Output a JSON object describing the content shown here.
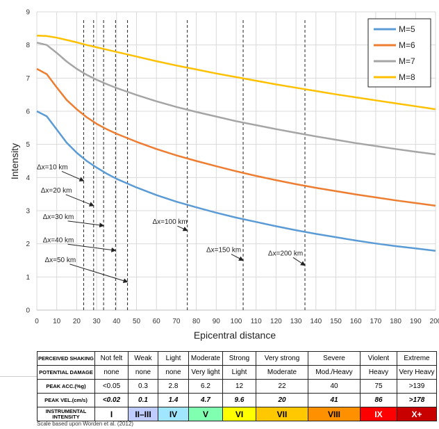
{
  "chart_data": {
    "type": "line",
    "xlabel": "Epicentral distance",
    "ylabel": "Intensity",
    "xlim": [
      0,
      200
    ],
    "ylim": [
      0,
      9
    ],
    "x_ticks": [
      "0",
      "10",
      "20",
      "30",
      "40",
      "50",
      "60",
      "70",
      "80",
      "90",
      "100",
      "110",
      "120",
      "130",
      "140",
      "150",
      "160",
      "170",
      "180",
      "190",
      "200"
    ],
    "y_ticks": [
      "0",
      "1",
      "2",
      "3",
      "4",
      "5",
      "6",
      "7",
      "8",
      "9"
    ],
    "grid": true,
    "legend_position": "top-right",
    "x": [
      0,
      5,
      10,
      15,
      20,
      25,
      30,
      35,
      40,
      50,
      60,
      70,
      80,
      90,
      100,
      110,
      120,
      130,
      140,
      150,
      160,
      170,
      180,
      190,
      200
    ],
    "series": [
      {
        "name": "M=5",
        "color": "#5b9bd5",
        "values": [
          6.0,
          5.85,
          5.45,
          5.05,
          4.75,
          4.5,
          4.3,
          4.12,
          3.96,
          3.7,
          3.47,
          3.27,
          3.1,
          2.94,
          2.79,
          2.66,
          2.53,
          2.41,
          2.3,
          2.2,
          2.1,
          2.01,
          1.93,
          1.86,
          1.79
        ]
      },
      {
        "name": "M=6",
        "color": "#ed7d31",
        "values": [
          7.28,
          7.12,
          6.72,
          6.34,
          6.06,
          5.82,
          5.62,
          5.46,
          5.32,
          5.08,
          4.86,
          4.67,
          4.5,
          4.34,
          4.19,
          4.05,
          3.92,
          3.8,
          3.69,
          3.59,
          3.49,
          3.4,
          3.31,
          3.23,
          3.15
        ]
      },
      {
        "name": "M=7",
        "color": "#a5a5a5",
        "values": [
          8.07,
          8.0,
          7.76,
          7.5,
          7.28,
          7.1,
          6.95,
          6.82,
          6.7,
          6.49,
          6.3,
          6.13,
          5.98,
          5.84,
          5.7,
          5.58,
          5.46,
          5.35,
          5.24,
          5.14,
          5.04,
          4.95,
          4.86,
          4.78,
          4.7
        ]
      },
      {
        "name": "M=8",
        "color": "#ffc000",
        "values": [
          8.28,
          8.27,
          8.22,
          8.15,
          8.08,
          8.0,
          7.93,
          7.86,
          7.79,
          7.65,
          7.51,
          7.38,
          7.26,
          7.14,
          7.03,
          6.92,
          6.81,
          6.71,
          6.61,
          6.51,
          6.42,
          6.33,
          6.24,
          6.15,
          6.06
        ]
      }
    ],
    "vertical_lines": [
      23.5,
      28.5,
      33.5,
      39.5,
      45.5,
      75.5,
      103.5,
      134.5
    ],
    "annotations": [
      {
        "text": "Δx=10 km",
        "x": 0,
        "y": 4.25,
        "target_x": 23.5,
        "target_y": 3.9
      },
      {
        "text": "Δx=20 km",
        "x": 2,
        "y": 3.55,
        "target_x": 28.5,
        "target_y": 3.15
      },
      {
        "text": "Δx=30 km",
        "x": 3,
        "y": 2.75,
        "target_x": 33.5,
        "target_y": 2.55
      },
      {
        "text": "Δx=40 km",
        "x": 3,
        "y": 2.05,
        "target_x": 39.5,
        "target_y": 1.8
      },
      {
        "text": "Δx=50 km",
        "x": 4,
        "y": 1.45,
        "target_x": 45.5,
        "target_y": 0.85
      },
      {
        "text": "Δx=100 km",
        "x": 58,
        "y": 2.6,
        "target_x": 75.5,
        "target_y": 2.4
      },
      {
        "text": "Δx=150 km",
        "x": 85,
        "y": 1.75,
        "target_x": 103.5,
        "target_y": 1.5
      },
      {
        "text": "Δx=200 km",
        "x": 116,
        "y": 1.65,
        "target_x": 134.5,
        "target_y": 1.35
      }
    ]
  },
  "scale_table": {
    "rows": [
      {
        "header": "PERCEIVED SHAKING",
        "cells": [
          "Not felt",
          "Weak",
          "Light",
          "Moderate",
          "Strong",
          "Very strong",
          "Severe",
          "Violent",
          "Extreme"
        ]
      },
      {
        "header": "POTENTIAL DAMAGE",
        "cells": [
          "none",
          "none",
          "none",
          "Very light",
          "Light",
          "Moderate",
          "Mod./Heavy",
          "Heavy",
          "Very Heavy"
        ]
      },
      {
        "header": "PEAK ACC.(%g)",
        "cells": [
          "<0.05",
          "0.3",
          "2.8",
          "6.2",
          "12",
          "22",
          "40",
          "75",
          ">139"
        ]
      },
      {
        "header": "PEAK VEL.(cm/s)",
        "cells": [
          "<0.02",
          "0.1",
          "1.4",
          "4.7",
          "9.6",
          "20",
          "41",
          "86",
          ">178"
        ]
      },
      {
        "header": "INSTRUMENTAL INTENSITY",
        "cells": [
          "I",
          "II–III",
          "IV",
          "V",
          "VI",
          "VII",
          "VIII",
          "IX",
          "X+"
        ]
      }
    ],
    "intensity_colors": [
      "#ffffff",
      "#bfccff",
      "#a0e6ff",
      "#80ffb0",
      "#ffff00",
      "#ffc800",
      "#ff9100",
      "#ff0000",
      "#c80000"
    ],
    "intensity_text_colors": [
      "#000000",
      "#000000",
      "#000000",
      "#000000",
      "#000000",
      "#000000",
      "#000000",
      "#ffffff",
      "#ffffff"
    ],
    "footnote": "Scale based upon Worden et al. (2012)"
  }
}
